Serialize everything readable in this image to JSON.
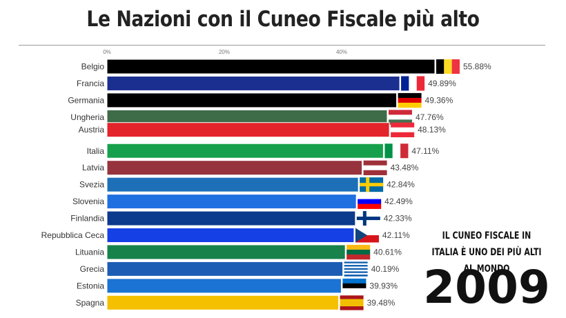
{
  "title": "Le Nazioni con il Cuneo Fiscale più alto",
  "note": "IL CUNEO FISCALE IN ITALIA È UNO DEI PIÙ ALTI AL MONDO",
  "year": "2009",
  "chart_data": {
    "type": "bar",
    "orientation": "horizontal",
    "title": "Le Nazioni con il Cuneo Fiscale più alto",
    "x_ticks": [
      "0%",
      "20%",
      "40%"
    ],
    "x_tick_values": [
      0,
      20,
      40
    ],
    "xlim": [
      0,
      60
    ],
    "categories": [
      "Belgio",
      "Francia",
      "Germania",
      "Ungheria",
      "Austria",
      "Italia",
      "Latvia",
      "Svezia",
      "Slovenia",
      "Finlandia",
      "Repubblica Ceca",
      "Lituania",
      "Grecia",
      "Estonia",
      "Spagna"
    ],
    "values": [
      55.88,
      49.89,
      49.36,
      47.76,
      48.13,
      47.11,
      43.48,
      42.84,
      42.49,
      42.33,
      42.11,
      40.61,
      40.19,
      39.93,
      39.48
    ],
    "value_labels": [
      "55.88%",
      "49.89%",
      "49.36%",
      "47.76%",
      "48.13%",
      "47.11%",
      "43.48%",
      "42.84%",
      "42.49%",
      "42.33%",
      "42.11%",
      "40.61%",
      "40.19%",
      "39.93%",
      "39.48%"
    ],
    "rank_positions": [
      0,
      1,
      2,
      3,
      3.75,
      5,
      6,
      7,
      8,
      9,
      10,
      11,
      12,
      13,
      14
    ],
    "bar_colors": [
      "#000000",
      "#1a2f8f",
      "#000000",
      "#3e6b48",
      "#e3242b",
      "#17a04b",
      "#97333d",
      "#1d6fb8",
      "#1f6fe0",
      "#0c3a8c",
      "#1540e6",
      "#17824a",
      "#1c5cb5",
      "#1b73d3",
      "#f5c000"
    ],
    "flags": [
      {
        "type": "v",
        "colors": [
          "#000000",
          "#fdda24",
          "#ef3340"
        ]
      },
      {
        "type": "v",
        "colors": [
          "#002395",
          "#ffffff",
          "#ed2939"
        ]
      },
      {
        "type": "h",
        "colors": [
          "#000000",
          "#dd0000",
          "#ffce00"
        ]
      },
      {
        "type": "h",
        "colors": [
          "#ce2939",
          "#ffffff",
          "#477050"
        ]
      },
      {
        "type": "h",
        "colors": [
          "#ed2939",
          "#ffffff",
          "#ed2939"
        ]
      },
      {
        "type": "v",
        "colors": [
          "#009246",
          "#ffffff",
          "#ce2b37"
        ]
      },
      {
        "type": "h",
        "colors": [
          "#9e3039",
          "#ffffff",
          "#9e3039"
        ]
      },
      {
        "type": "cross",
        "colors": [
          "#006aa7",
          "#fecc00"
        ]
      },
      {
        "type": "h",
        "colors": [
          "#ffffff",
          "#0000ff",
          "#ff0000"
        ]
      },
      {
        "type": "cross",
        "colors": [
          "#ffffff",
          "#003580"
        ]
      },
      {
        "type": "czech",
        "colors": [
          "#ffffff",
          "#d7141a",
          "#11457e"
        ]
      },
      {
        "type": "h",
        "colors": [
          "#fdb913",
          "#006a44",
          "#c1272d"
        ]
      },
      {
        "type": "h",
        "colors": [
          "#0d5eaf",
          "#ffffff",
          "#0d5eaf",
          "#ffffff",
          "#0d5eaf",
          "#ffffff",
          "#0d5eaf",
          "#ffffff",
          "#0d5eaf"
        ]
      },
      {
        "type": "h",
        "colors": [
          "#0072ce",
          "#000000",
          "#ffffff"
        ]
      },
      {
        "type": "h",
        "colors": [
          "#aa151b",
          "#f1bf00",
          "#f1bf00",
          "#aa151b"
        ]
      }
    ]
  }
}
